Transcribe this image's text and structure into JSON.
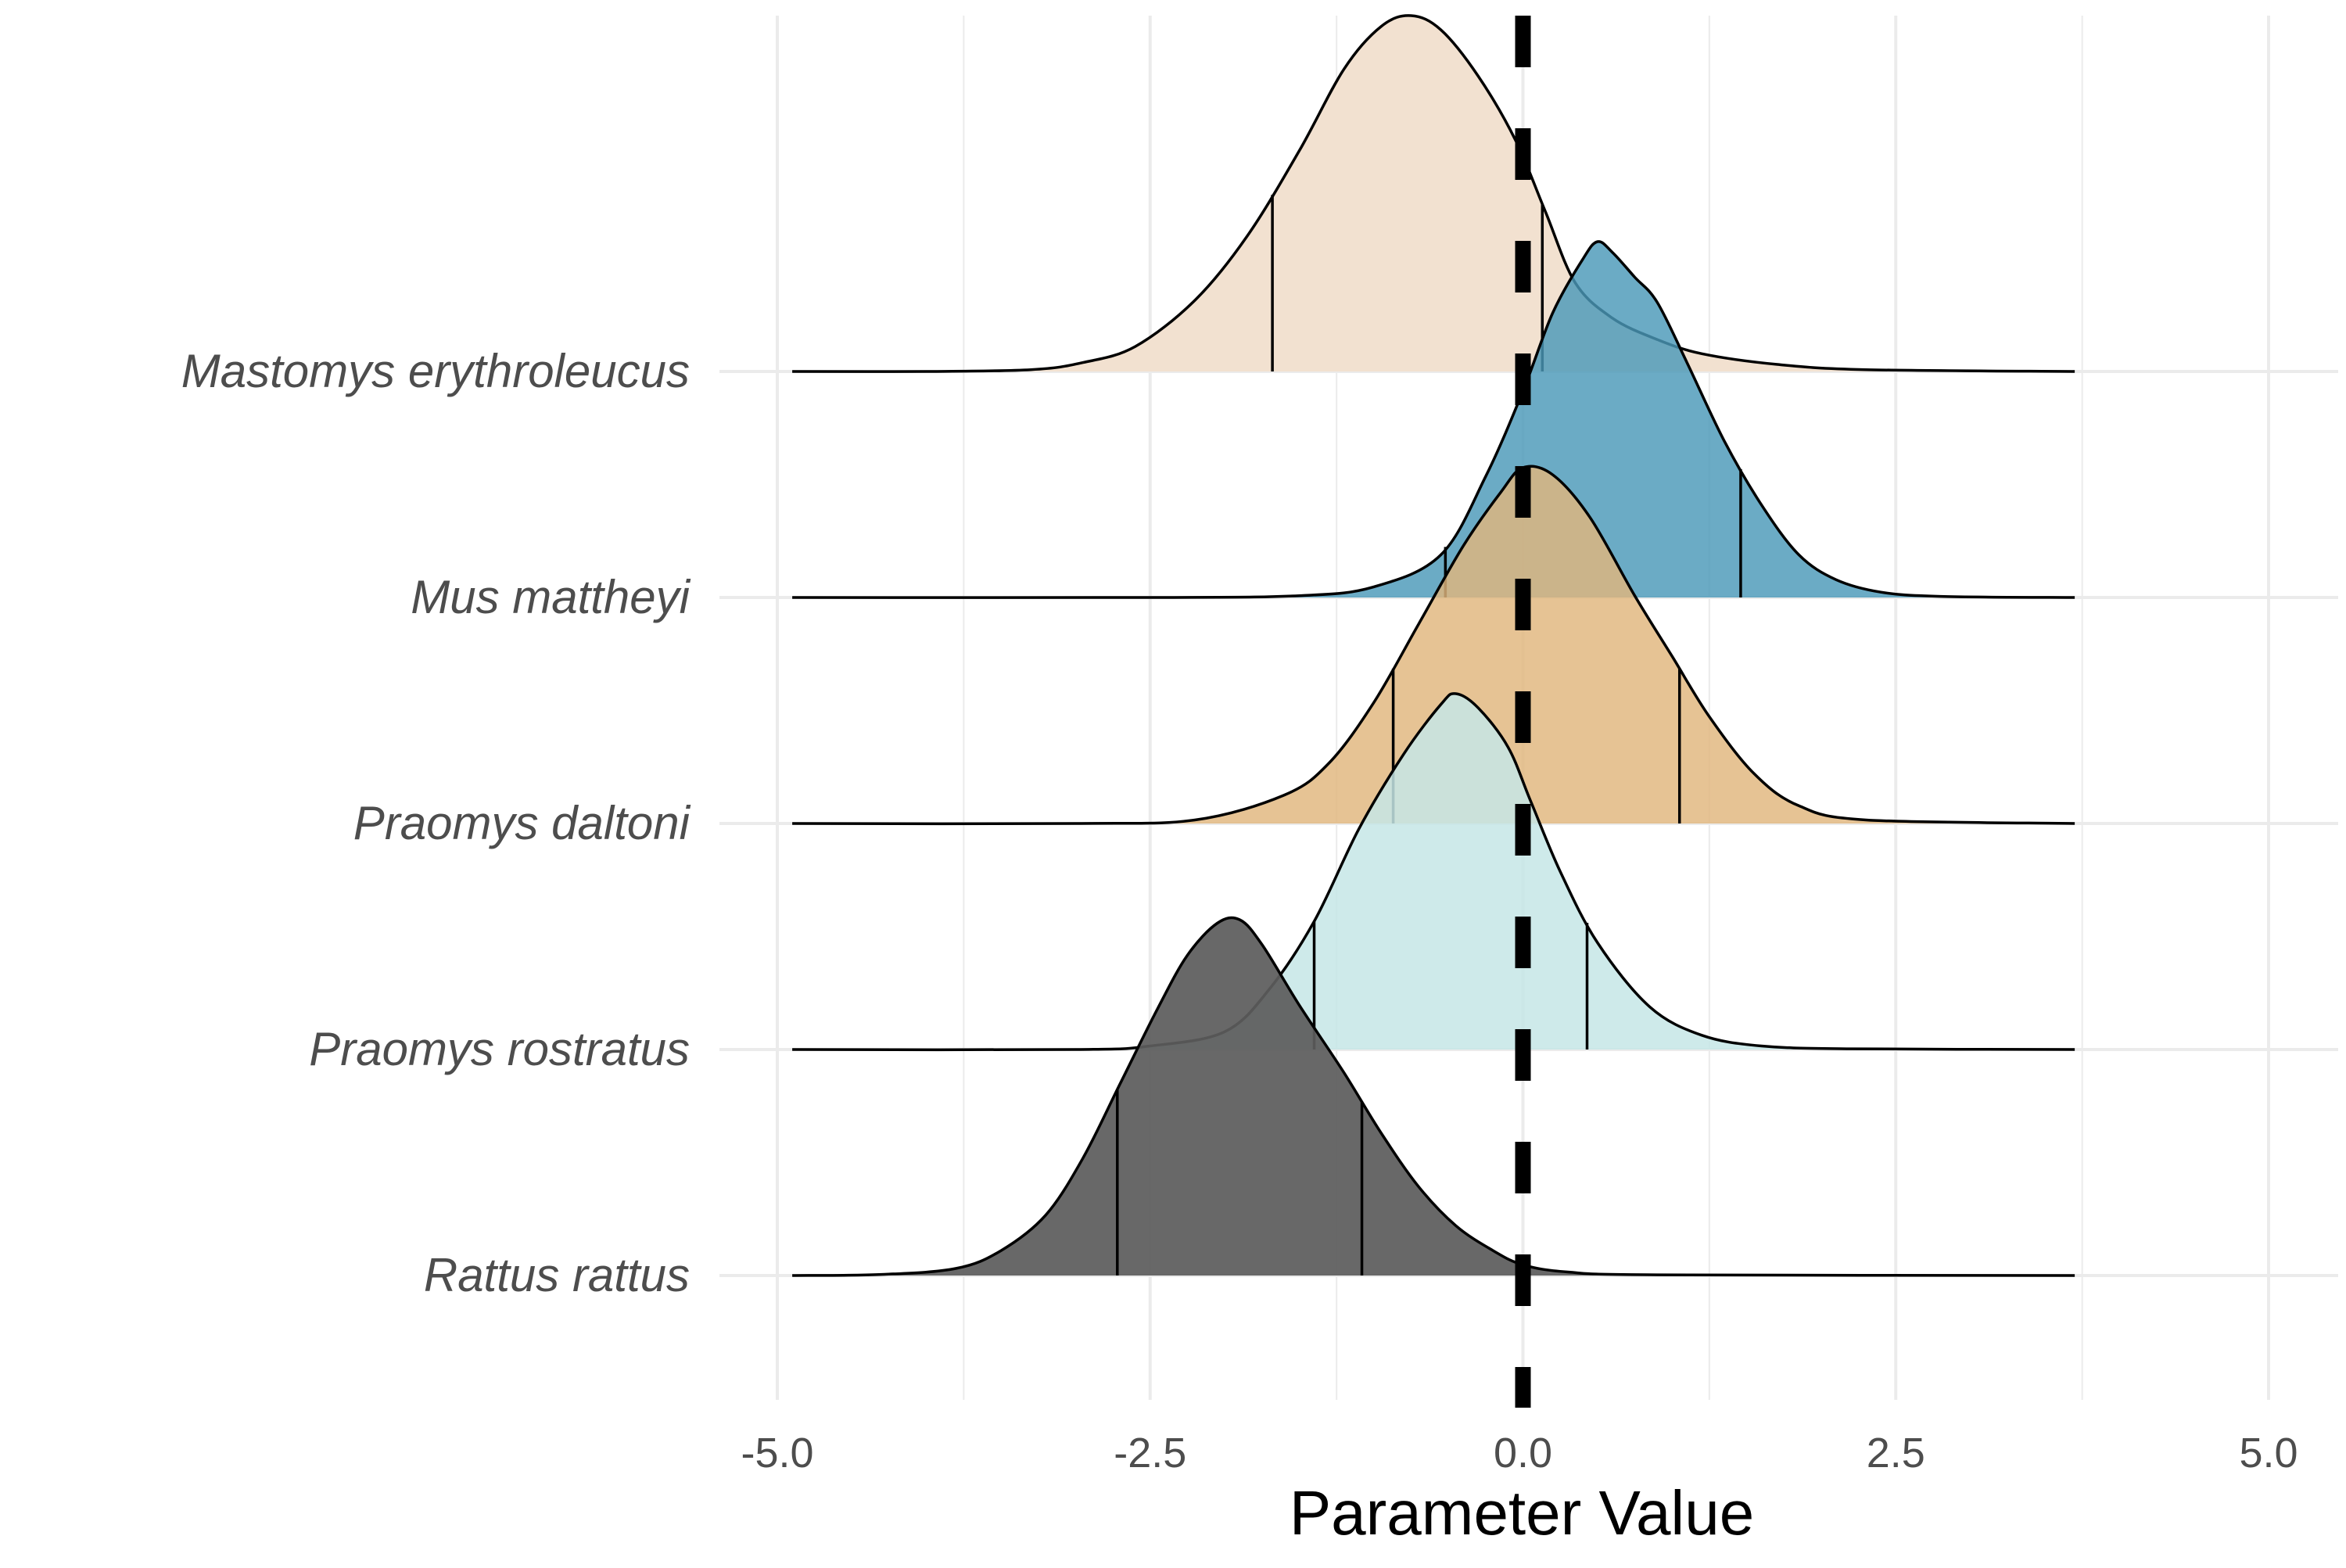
{
  "chart_data": {
    "type": "ridgeline",
    "title": "",
    "xlabel": "Parameter Value",
    "ylabel": "",
    "xlim": [
      -5.0,
      5.0
    ],
    "x_ticks": [
      -5.0,
      -2.5,
      0.0,
      2.5,
      5.0
    ],
    "x_tick_labels": [
      "-5.0",
      "-2.5",
      "0.0",
      "2.5",
      "5.0"
    ],
    "grid": true,
    "reference_line": {
      "x": 0.0,
      "style": "dashed",
      "color": "#000000"
    },
    "density_x_range": [
      -4.9,
      3.7
    ],
    "series": [
      {
        "name": "Mastomys erythroleucus",
        "fill": "#f2e1d0",
        "opacity": 1.0,
        "interval": [
          -1.68,
          0.13
        ],
        "density": [
          [
            -4.9,
            0
          ],
          [
            -4.0,
            0
          ],
          [
            -3.3,
            0.005
          ],
          [
            -2.95,
            0.025
          ],
          [
            -2.6,
            0.07
          ],
          [
            -2.2,
            0.2
          ],
          [
            -1.85,
            0.38
          ],
          [
            -1.5,
            0.62
          ],
          [
            -1.2,
            0.85
          ],
          [
            -0.95,
            0.97
          ],
          [
            -0.75,
            1.0
          ],
          [
            -0.55,
            0.96
          ],
          [
            -0.3,
            0.83
          ],
          [
            -0.05,
            0.65
          ],
          [
            0.15,
            0.45
          ],
          [
            0.35,
            0.25
          ],
          [
            0.6,
            0.15
          ],
          [
            0.9,
            0.09
          ],
          [
            1.2,
            0.05
          ],
          [
            1.7,
            0.02
          ],
          [
            2.3,
            0.005
          ],
          [
            3.7,
            0
          ]
        ]
      },
      {
        "name": "Mus mattheyi",
        "fill": "#4a98b8",
        "opacity": 0.82,
        "interval": [
          -0.52,
          1.46
        ],
        "density": [
          [
            -4.9,
            0
          ],
          [
            -2.5,
            0
          ],
          [
            -1.5,
            0.005
          ],
          [
            -1.0,
            0.03
          ],
          [
            -0.55,
            0.12
          ],
          [
            -0.25,
            0.34
          ],
          [
            0.0,
            0.58
          ],
          [
            0.2,
            0.8
          ],
          [
            0.4,
            0.95
          ],
          [
            0.5,
            1.0
          ],
          [
            0.6,
            0.97
          ],
          [
            0.75,
            0.9
          ],
          [
            0.9,
            0.83
          ],
          [
            1.1,
            0.66
          ],
          [
            1.35,
            0.44
          ],
          [
            1.6,
            0.26
          ],
          [
            1.85,
            0.12
          ],
          [
            2.1,
            0.05
          ],
          [
            2.4,
            0.015
          ],
          [
            2.8,
            0.003
          ],
          [
            3.7,
            0
          ]
        ]
      },
      {
        "name": "Praomys daltoni",
        "fill": "#e0b67c",
        "opacity": 0.82,
        "interval": [
          -0.87,
          1.05
        ],
        "density": [
          [
            -4.9,
            0
          ],
          [
            -3.0,
            0
          ],
          [
            -2.2,
            0.01
          ],
          [
            -1.6,
            0.08
          ],
          [
            -1.3,
            0.17
          ],
          [
            -1.0,
            0.34
          ],
          [
            -0.7,
            0.56
          ],
          [
            -0.4,
            0.78
          ],
          [
            -0.15,
            0.93
          ],
          [
            0.0,
            1.0
          ],
          [
            0.2,
            0.98
          ],
          [
            0.45,
            0.86
          ],
          [
            0.75,
            0.64
          ],
          [
            1.0,
            0.47
          ],
          [
            1.25,
            0.3
          ],
          [
            1.55,
            0.14
          ],
          [
            1.85,
            0.05
          ],
          [
            2.3,
            0.01
          ],
          [
            3.7,
            0
          ]
        ]
      },
      {
        "name": "Praomys rostratus",
        "fill": "#c5e6e6",
        "opacity": 0.85,
        "interval": [
          -1.4,
          0.43
        ],
        "density": [
          [
            -4.9,
            0
          ],
          [
            -3.0,
            0
          ],
          [
            -2.5,
            0.01
          ],
          [
            -2.0,
            0.05
          ],
          [
            -1.7,
            0.17
          ],
          [
            -1.4,
            0.36
          ],
          [
            -1.1,
            0.62
          ],
          [
            -0.8,
            0.83
          ],
          [
            -0.55,
            0.97
          ],
          [
            -0.45,
            1.0
          ],
          [
            -0.3,
            0.96
          ],
          [
            -0.1,
            0.85
          ],
          [
            0.05,
            0.7
          ],
          [
            0.25,
            0.5
          ],
          [
            0.5,
            0.3
          ],
          [
            0.85,
            0.12
          ],
          [
            1.2,
            0.04
          ],
          [
            1.6,
            0.01
          ],
          [
            2.2,
            0.002
          ],
          [
            3.7,
            0
          ]
        ]
      },
      {
        "name": "Rattus rattus",
        "fill": "#5c5c5c",
        "opacity": 0.93,
        "interval": [
          -2.72,
          -1.08
        ],
        "density": [
          [
            -4.9,
            0
          ],
          [
            -4.3,
            0.003
          ],
          [
            -3.8,
            0.02
          ],
          [
            -3.5,
            0.07
          ],
          [
            -3.2,
            0.17
          ],
          [
            -2.95,
            0.33
          ],
          [
            -2.7,
            0.54
          ],
          [
            -2.45,
            0.75
          ],
          [
            -2.25,
            0.9
          ],
          [
            -2.05,
            0.99
          ],
          [
            -1.9,
            1.0
          ],
          [
            -1.75,
            0.93
          ],
          [
            -1.5,
            0.76
          ],
          [
            -1.2,
            0.57
          ],
          [
            -0.95,
            0.4
          ],
          [
            -0.7,
            0.25
          ],
          [
            -0.45,
            0.14
          ],
          [
            -0.2,
            0.07
          ],
          [
            0.0,
            0.03
          ],
          [
            0.3,
            0.01
          ],
          [
            0.9,
            0.002
          ],
          [
            3.7,
            0
          ]
        ]
      }
    ]
  }
}
